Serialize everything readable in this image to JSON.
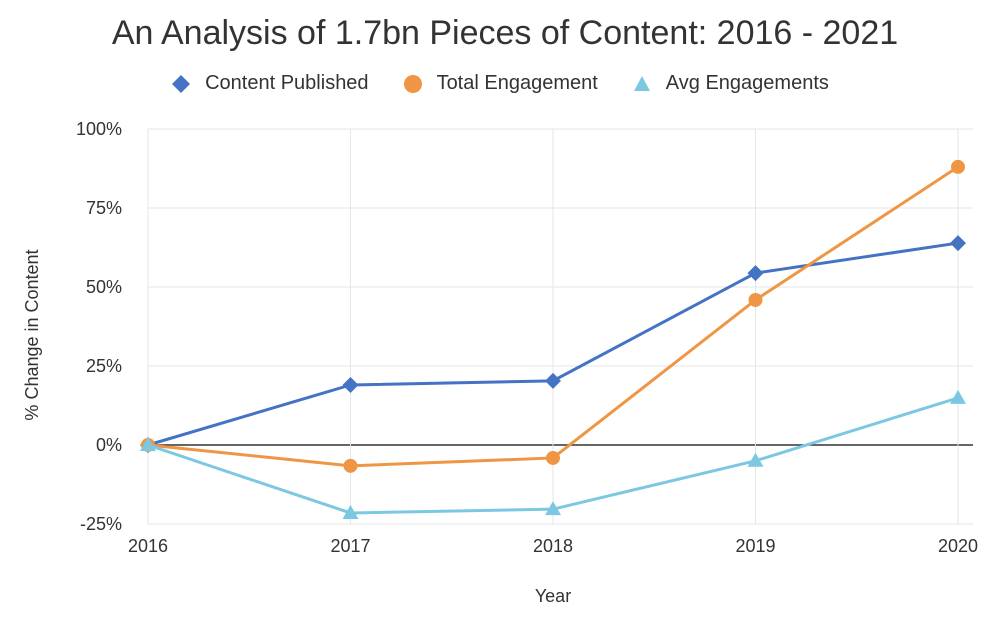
{
  "chart_data": {
    "type": "line",
    "title": "An Analysis of 1.7bn Pieces of Content: 2016 - 2021",
    "xlabel": "Year",
    "ylabel": "% Change in Content",
    "categories": [
      "2016",
      "2017",
      "2018",
      "2019",
      "2020"
    ],
    "ylim": [
      -25,
      100
    ],
    "yticks": [
      "100%",
      "75%",
      "50%",
      "25%",
      "0%",
      "-25%"
    ],
    "ytick_values": [
      100,
      75,
      50,
      25,
      0,
      -25
    ],
    "grid": true,
    "legend_position": "top",
    "series": [
      {
        "name": "Content Published",
        "marker": "diamond",
        "color": "#4472C4",
        "values": [
          0,
          19,
          20.3,
          54.4,
          63.9
        ]
      },
      {
        "name": "Total Engagement",
        "marker": "circle",
        "color": "#EF9645",
        "values": [
          0,
          -6.6,
          -4.1,
          45.9,
          88
        ]
      },
      {
        "name": "Avg Engagements",
        "marker": "triangle",
        "color": "#7CC8E3",
        "values": [
          0,
          -21.5,
          -20.3,
          -5,
          14.9
        ]
      }
    ]
  }
}
